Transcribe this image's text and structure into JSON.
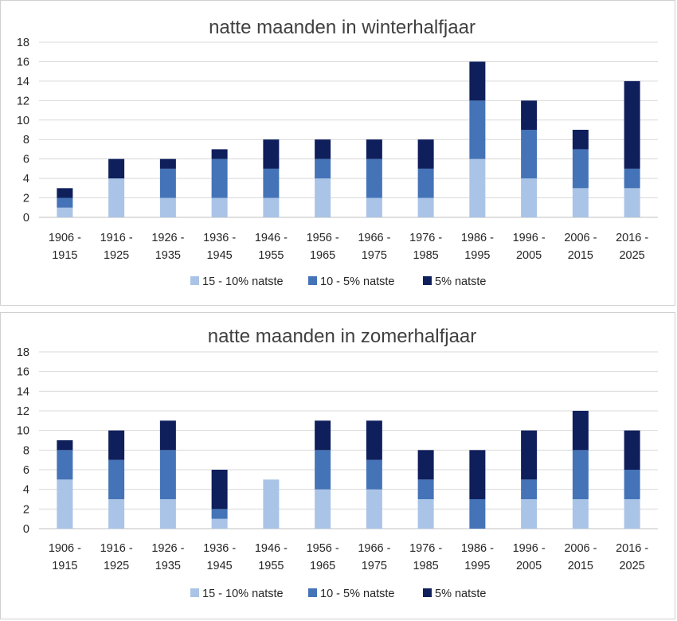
{
  "chart_data": [
    {
      "type": "bar",
      "stacked": true,
      "title": "natte maanden in winterhalfjaar",
      "xlabel": "",
      "ylabel": "",
      "categories": [
        "1906 - 1915",
        "1916 - 1925",
        "1926 - 1935",
        "1936 - 1945",
        "1946 - 1955",
        "1956 - 1965",
        "1966 - 1975",
        "1976 - 1985",
        "1986 - 1995",
        "1996 - 2005",
        "2006 - 2015",
        "2016 - 2025"
      ],
      "series": [
        {
          "name": "15 - 10% natste",
          "color": "#a9c4e6",
          "values": [
            1,
            4,
            2,
            2,
            2,
            4,
            2,
            2,
            6,
            4,
            3,
            3
          ]
        },
        {
          "name": "10 - 5% natste",
          "color": "#4473b8",
          "values": [
            1,
            0,
            3,
            4,
            3,
            2,
            4,
            3,
            6,
            5,
            4,
            2
          ]
        },
        {
          "name": "5% natste",
          "color": "#0f1f5c",
          "values": [
            1,
            2,
            1,
            1,
            3,
            2,
            2,
            3,
            4,
            3,
            2,
            9
          ]
        }
      ],
      "ylim": [
        0,
        18
      ],
      "yticks": [
        0,
        2,
        4,
        6,
        8,
        10,
        12,
        14,
        16,
        18
      ],
      "grid": true,
      "legend": "bottom"
    },
    {
      "type": "bar",
      "stacked": true,
      "title": "natte maanden in zomerhalfjaar",
      "xlabel": "",
      "ylabel": "",
      "categories": [
        "1906 - 1915",
        "1916 - 1925",
        "1926 - 1935",
        "1936 - 1945",
        "1946 - 1955",
        "1956 - 1965",
        "1966 - 1975",
        "1976 - 1985",
        "1986 - 1995",
        "1996 - 2005",
        "2006 - 2015",
        "2016 - 2025"
      ],
      "series": [
        {
          "name": "15 - 10% natste",
          "color": "#a9c4e6",
          "values": [
            5,
            3,
            3,
            1,
            5,
            4,
            4,
            3,
            0,
            3,
            3,
            3
          ]
        },
        {
          "name": "10 - 5% natste",
          "color": "#4473b8",
          "values": [
            3,
            4,
            5,
            1,
            0,
            4,
            3,
            2,
            3,
            2,
            5,
            3
          ]
        },
        {
          "name": "5% natste",
          "color": "#0f1f5c",
          "values": [
            1,
            3,
            3,
            4,
            0,
            3,
            4,
            3,
            5,
            5,
            4,
            4
          ]
        }
      ],
      "ylim": [
        0,
        18
      ],
      "yticks": [
        0,
        2,
        4,
        6,
        8,
        10,
        12,
        14,
        16,
        18
      ],
      "grid": true,
      "legend": "bottom"
    }
  ]
}
